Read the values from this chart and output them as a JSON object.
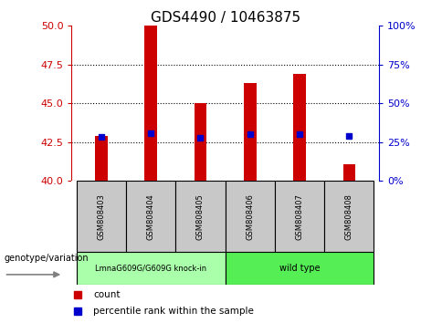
{
  "title": "GDS4490 / 10463875",
  "samples": [
    "GSM808403",
    "GSM808404",
    "GSM808405",
    "GSM808406",
    "GSM808407",
    "GSM808408"
  ],
  "bar_bottoms": [
    40,
    40,
    40,
    40,
    40,
    40
  ],
  "bar_tops": [
    42.9,
    50.0,
    45.0,
    46.3,
    46.9,
    41.1
  ],
  "percentile_values": [
    42.85,
    43.1,
    42.8,
    43.0,
    43.0,
    42.9
  ],
  "left_ylim": [
    40,
    50
  ],
  "left_yticks": [
    40,
    42.5,
    45,
    47.5,
    50
  ],
  "right_ylim": [
    0,
    100
  ],
  "right_yticks": [
    0,
    25,
    50,
    75,
    100
  ],
  "bar_color": "#cc0000",
  "dot_color": "#0000cc",
  "left_tick_color": "#cc0000",
  "right_tick_color": "#0000cc",
  "group1_label": "LmnaG609G/G609G knock-in",
  "group2_label": "wild type",
  "group1_color": "#aaffaa",
  "group2_color": "#55ee55",
  "genotype_label": "genotype/variation",
  "legend_count_label": "count",
  "legend_percentile_label": "percentile rank within the sample",
  "sample_box_color": "#c8c8c8",
  "title_fontsize": 11,
  "axis_fontsize": 8,
  "bar_width": 0.25
}
